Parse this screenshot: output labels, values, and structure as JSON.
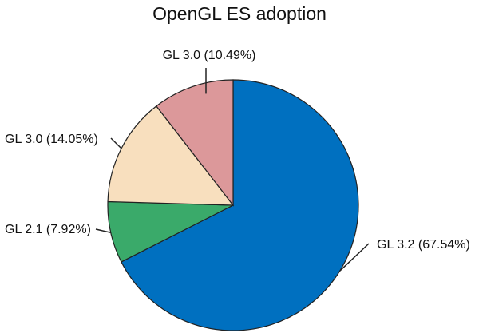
{
  "chart_data": {
    "type": "pie",
    "title": "OpenGL ES adoption",
    "slices": [
      {
        "label": "GL 3.2 (67.54%)",
        "value": 67.54,
        "color": "#0070c0"
      },
      {
        "label": "GL 2.1 (7.92%)",
        "value": 7.92,
        "color": "#3aaa6a"
      },
      {
        "label": "GL 3.0 (14.05%)",
        "value": 14.05,
        "color": "#f8dfbe"
      },
      {
        "label": "GL 3.0 (10.49%)",
        "value": 10.49,
        "color": "#dc989a"
      }
    ],
    "start": "top",
    "direction": "clockwise"
  }
}
